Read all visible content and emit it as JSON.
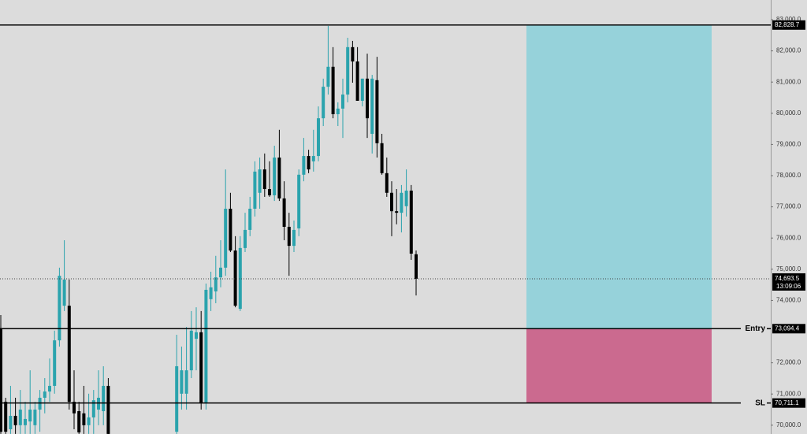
{
  "chart_data": {
    "type": "candlestick",
    "up_color": "#2aa3ad",
    "down_color": "#000000",
    "open": [
      73080,
      70750,
      69870,
      70300,
      70000,
      70000,
      70120,
      70000,
      70500,
      70880,
      71080,
      71260,
      72720,
      73830,
      73830,
      70750,
      70450,
      70380,
      70000,
      70250,
      70500,
      70450,
      71260,
      null,
      null,
      null,
      null,
      null,
      null,
      null,
      null,
      null,
      null,
      null,
      null,
      null,
      69790,
      71010,
      71010,
      71760,
      72770,
      72980,
      70700,
      74040,
      74290,
      74740,
      75050,
      76940,
      75600,
      73730,
      75680,
      76260,
      76940,
      77450,
      78200,
      77570,
      77370,
      78580,
      77270,
      76360,
      75750,
      76310,
      78030,
      78630,
      78460,
      78630,
      79840,
      80850,
      81490,
      79970,
      80150,
      80600,
      82120,
      81660,
      80400,
      81110,
      79340,
      81060,
      79040,
      78080,
      77450,
      76860,
      76810,
      77020,
      77520,
      75480
    ],
    "high": [
      73530,
      70880,
      71260,
      70880,
      71130,
      70750,
      71760,
      70750,
      71130,
      71510,
      72140,
      73030,
      75050,
      75930,
      74670,
      71760,
      70750,
      71260,
      71010,
      71130,
      71760,
      71890,
      71510,
      null,
      null,
      null,
      null,
      null,
      null,
      null,
      null,
      null,
      null,
      null,
      null,
      null,
      72900,
      72520,
      73150,
      73660,
      73780,
      73660,
      74540,
      74920,
      75430,
      75930,
      78200,
      77450,
      76060,
      76060,
      76810,
      77320,
      78460,
      78580,
      78710,
      78460,
      78960,
      79470,
      77820,
      76810,
      76560,
      78200,
      79210,
      78830,
      79470,
      80220,
      81110,
      82800,
      82120,
      80350,
      81110,
      82420,
      82320,
      82120,
      81110,
      81910,
      81230,
      81810,
      79340,
      78580,
      77820,
      77570,
      77700,
      78200,
      77700,
      75600
    ],
    "low": [
      69720,
      69720,
      69720,
      69720,
      69720,
      69720,
      69720,
      69720,
      69790,
      70380,
      70750,
      71010,
      72520,
      73660,
      70500,
      69870,
      69720,
      69720,
      69720,
      69720,
      70000,
      70000,
      69720,
      null,
      null,
      null,
      null,
      null,
      null,
      null,
      null,
      null,
      null,
      null,
      null,
      null,
      69720,
      70500,
      70500,
      71510,
      71760,
      70500,
      70500,
      73660,
      73910,
      74420,
      74790,
      75550,
      73780,
      73660,
      75550,
      76060,
      76690,
      76940,
      77320,
      77320,
      77190,
      77190,
      75930,
      74790,
      75550,
      76060,
      77820,
      78080,
      78130,
      78460,
      79590,
      80600,
      79840,
      79590,
      79210,
      80350,
      80980,
      80400,
      80220,
      79210,
      78710,
      78580,
      78030,
      77320,
      76060,
      76440,
      76180,
      76690,
      75300,
      74160
    ],
    "close": [
      69790,
      69790,
      70300,
      70000,
      70500,
      70200,
      70500,
      70500,
      70880,
      71080,
      71260,
      72720,
      74790,
      74670,
      70750,
      70380,
      69770,
      70000,
      70250,
      70800,
      70880,
      71260,
      69720,
      null,
      null,
      null,
      null,
      null,
      null,
      null,
      null,
      null,
      null,
      null,
      null,
      null,
      71890,
      71760,
      71760,
      73030,
      72980,
      70700,
      74340,
      74420,
      74740,
      75050,
      76940,
      75600,
      73830,
      75680,
      76260,
      76940,
      78130,
      78200,
      77570,
      77370,
      78580,
      77270,
      76360,
      75750,
      76260,
      78030,
      78630,
      78200,
      78630,
      79840,
      80850,
      81490,
      79970,
      80150,
      80600,
      82120,
      81660,
      80400,
      81110,
      79840,
      81110,
      79040,
      78080,
      77450,
      76860,
      76810,
      77450,
      77520,
      75500,
      74693.5
    ],
    "ylim": [
      69718,
      83631
    ],
    "yticks": [
      {
        "value": 70000,
        "label": "70,000.0"
      },
      {
        "value": 71000,
        "label": "71,000.0"
      },
      {
        "value": 72000,
        "label": "72,000.0"
      },
      {
        "value": 74000,
        "label": "74,000.0"
      },
      {
        "value": 75000,
        "label": "75,000.0"
      },
      {
        "value": 76000,
        "label": "76,000.0"
      },
      {
        "value": 77000,
        "label": "77,000.0"
      },
      {
        "value": 78000,
        "label": "78,000.0"
      },
      {
        "value": 79000,
        "label": "79,000.0"
      },
      {
        "value": 80000,
        "label": "80,000.0"
      },
      {
        "value": 81000,
        "label": "81,000.0"
      },
      {
        "value": 82000,
        "label": "82,000.0"
      },
      {
        "value": 83000,
        "label": "83,000.0"
      }
    ],
    "lines": [
      {
        "value": 82828.7,
        "value_label": "82,828.7"
      },
      {
        "name": "Entry",
        "value": 73094.4,
        "value_label": "73,094.4"
      },
      {
        "name": "SL",
        "value": 70711.1,
        "value_label": "70,711.1"
      }
    ],
    "last_price": {
      "value": 74693.5,
      "value_label": "74,693.5",
      "countdown": "13:09:06"
    },
    "position": {
      "target": 82828.7,
      "entry": 73094.4,
      "stop": 70711.1,
      "profit_color": "#96d2da",
      "loss_color": "#cb6a8f"
    }
  }
}
